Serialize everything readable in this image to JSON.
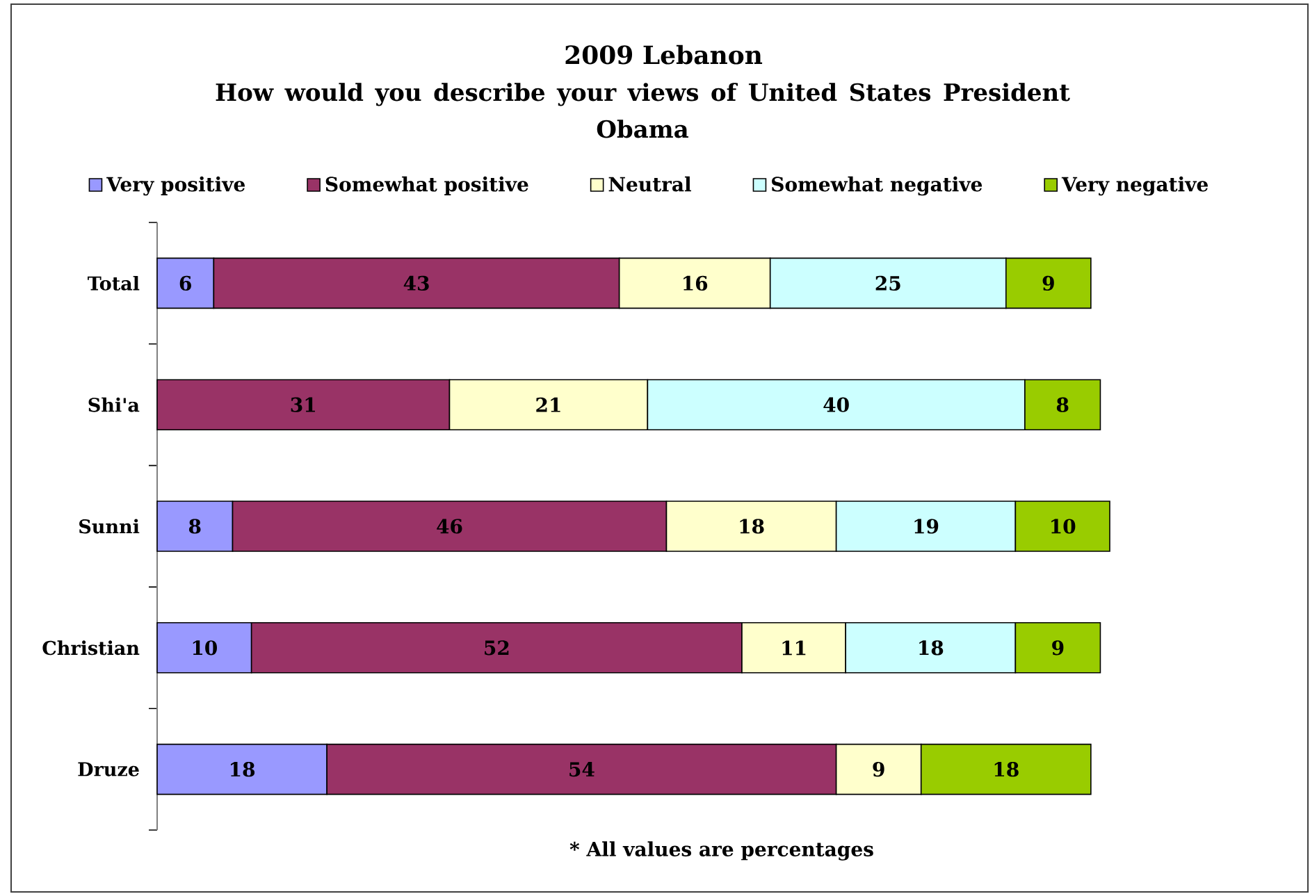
{
  "chart_data": {
    "type": "bar",
    "orientation": "horizontal",
    "stacked": true,
    "title": "2009 Lebanon",
    "subtitle": "How would you describe your views of United States President Obama",
    "categories": [
      "Total",
      "Shi'a",
      "Sunni",
      "Christian",
      "Druze"
    ],
    "series": [
      {
        "name": "Very positive",
        "color": "#9999ff",
        "values": [
          6,
          null,
          8,
          10,
          18
        ]
      },
      {
        "name": "Somewhat positive",
        "color": "#993366",
        "values": [
          43,
          31,
          46,
          52,
          54
        ]
      },
      {
        "name": "Neutral",
        "color": "#ffffcc",
        "values": [
          16,
          21,
          18,
          11,
          9
        ]
      },
      {
        "name": "Somewhat negative",
        "color": "#ccffff",
        "values": [
          25,
          40,
          19,
          18,
          null
        ]
      },
      {
        "name": "Very negative",
        "color": "#99cc00",
        "values": [
          9,
          8,
          10,
          9,
          18
        ]
      }
    ],
    "data_labels": true,
    "legend": "top",
    "annotations": [
      "* All values are percentages"
    ]
  }
}
